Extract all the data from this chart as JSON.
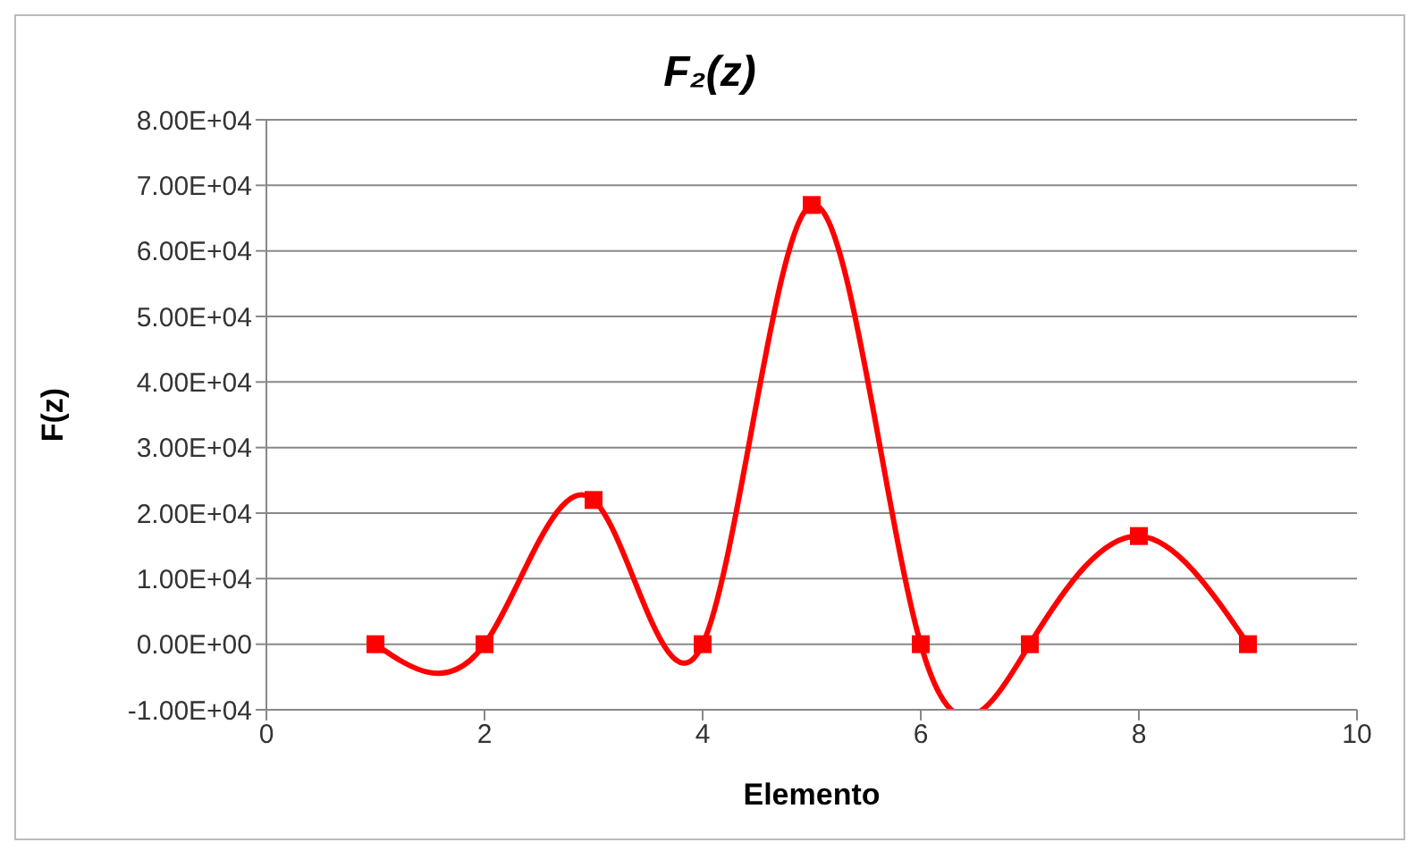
{
  "chart_data": {
    "type": "line",
    "title": "F₂(z)",
    "xlabel": "Elemento",
    "ylabel": "F(z)",
    "x": [
      1,
      2,
      3,
      4,
      5,
      6,
      7,
      8,
      9
    ],
    "series": [
      {
        "color": "#ff0000",
        "values": [
          0,
          0,
          22000,
          0,
          67000,
          0,
          0,
          16500,
          0
        ]
      }
    ],
    "xlim": [
      0,
      10
    ],
    "xticks": [
      0,
      2,
      4,
      6,
      8,
      10
    ],
    "ylim": [
      -10000,
      80000
    ],
    "yticks": [
      {
        "value": -10000,
        "label": "-1.00E+04"
      },
      {
        "value": 0,
        "label": "0.00E+00"
      },
      {
        "value": 10000,
        "label": "1.00E+04"
      },
      {
        "value": 20000,
        "label": "2.00E+04"
      },
      {
        "value": 30000,
        "label": "3.00E+04"
      },
      {
        "value": 40000,
        "label": "4.00E+04"
      },
      {
        "value": 50000,
        "label": "5.00E+04"
      },
      {
        "value": 60000,
        "label": "6.00E+04"
      },
      {
        "value": 70000,
        "label": "7.00E+04"
      },
      {
        "value": 80000,
        "label": "8.00E+04"
      }
    ],
    "grid": "y",
    "legend": false,
    "marker": "square",
    "line_style": "solid"
  }
}
